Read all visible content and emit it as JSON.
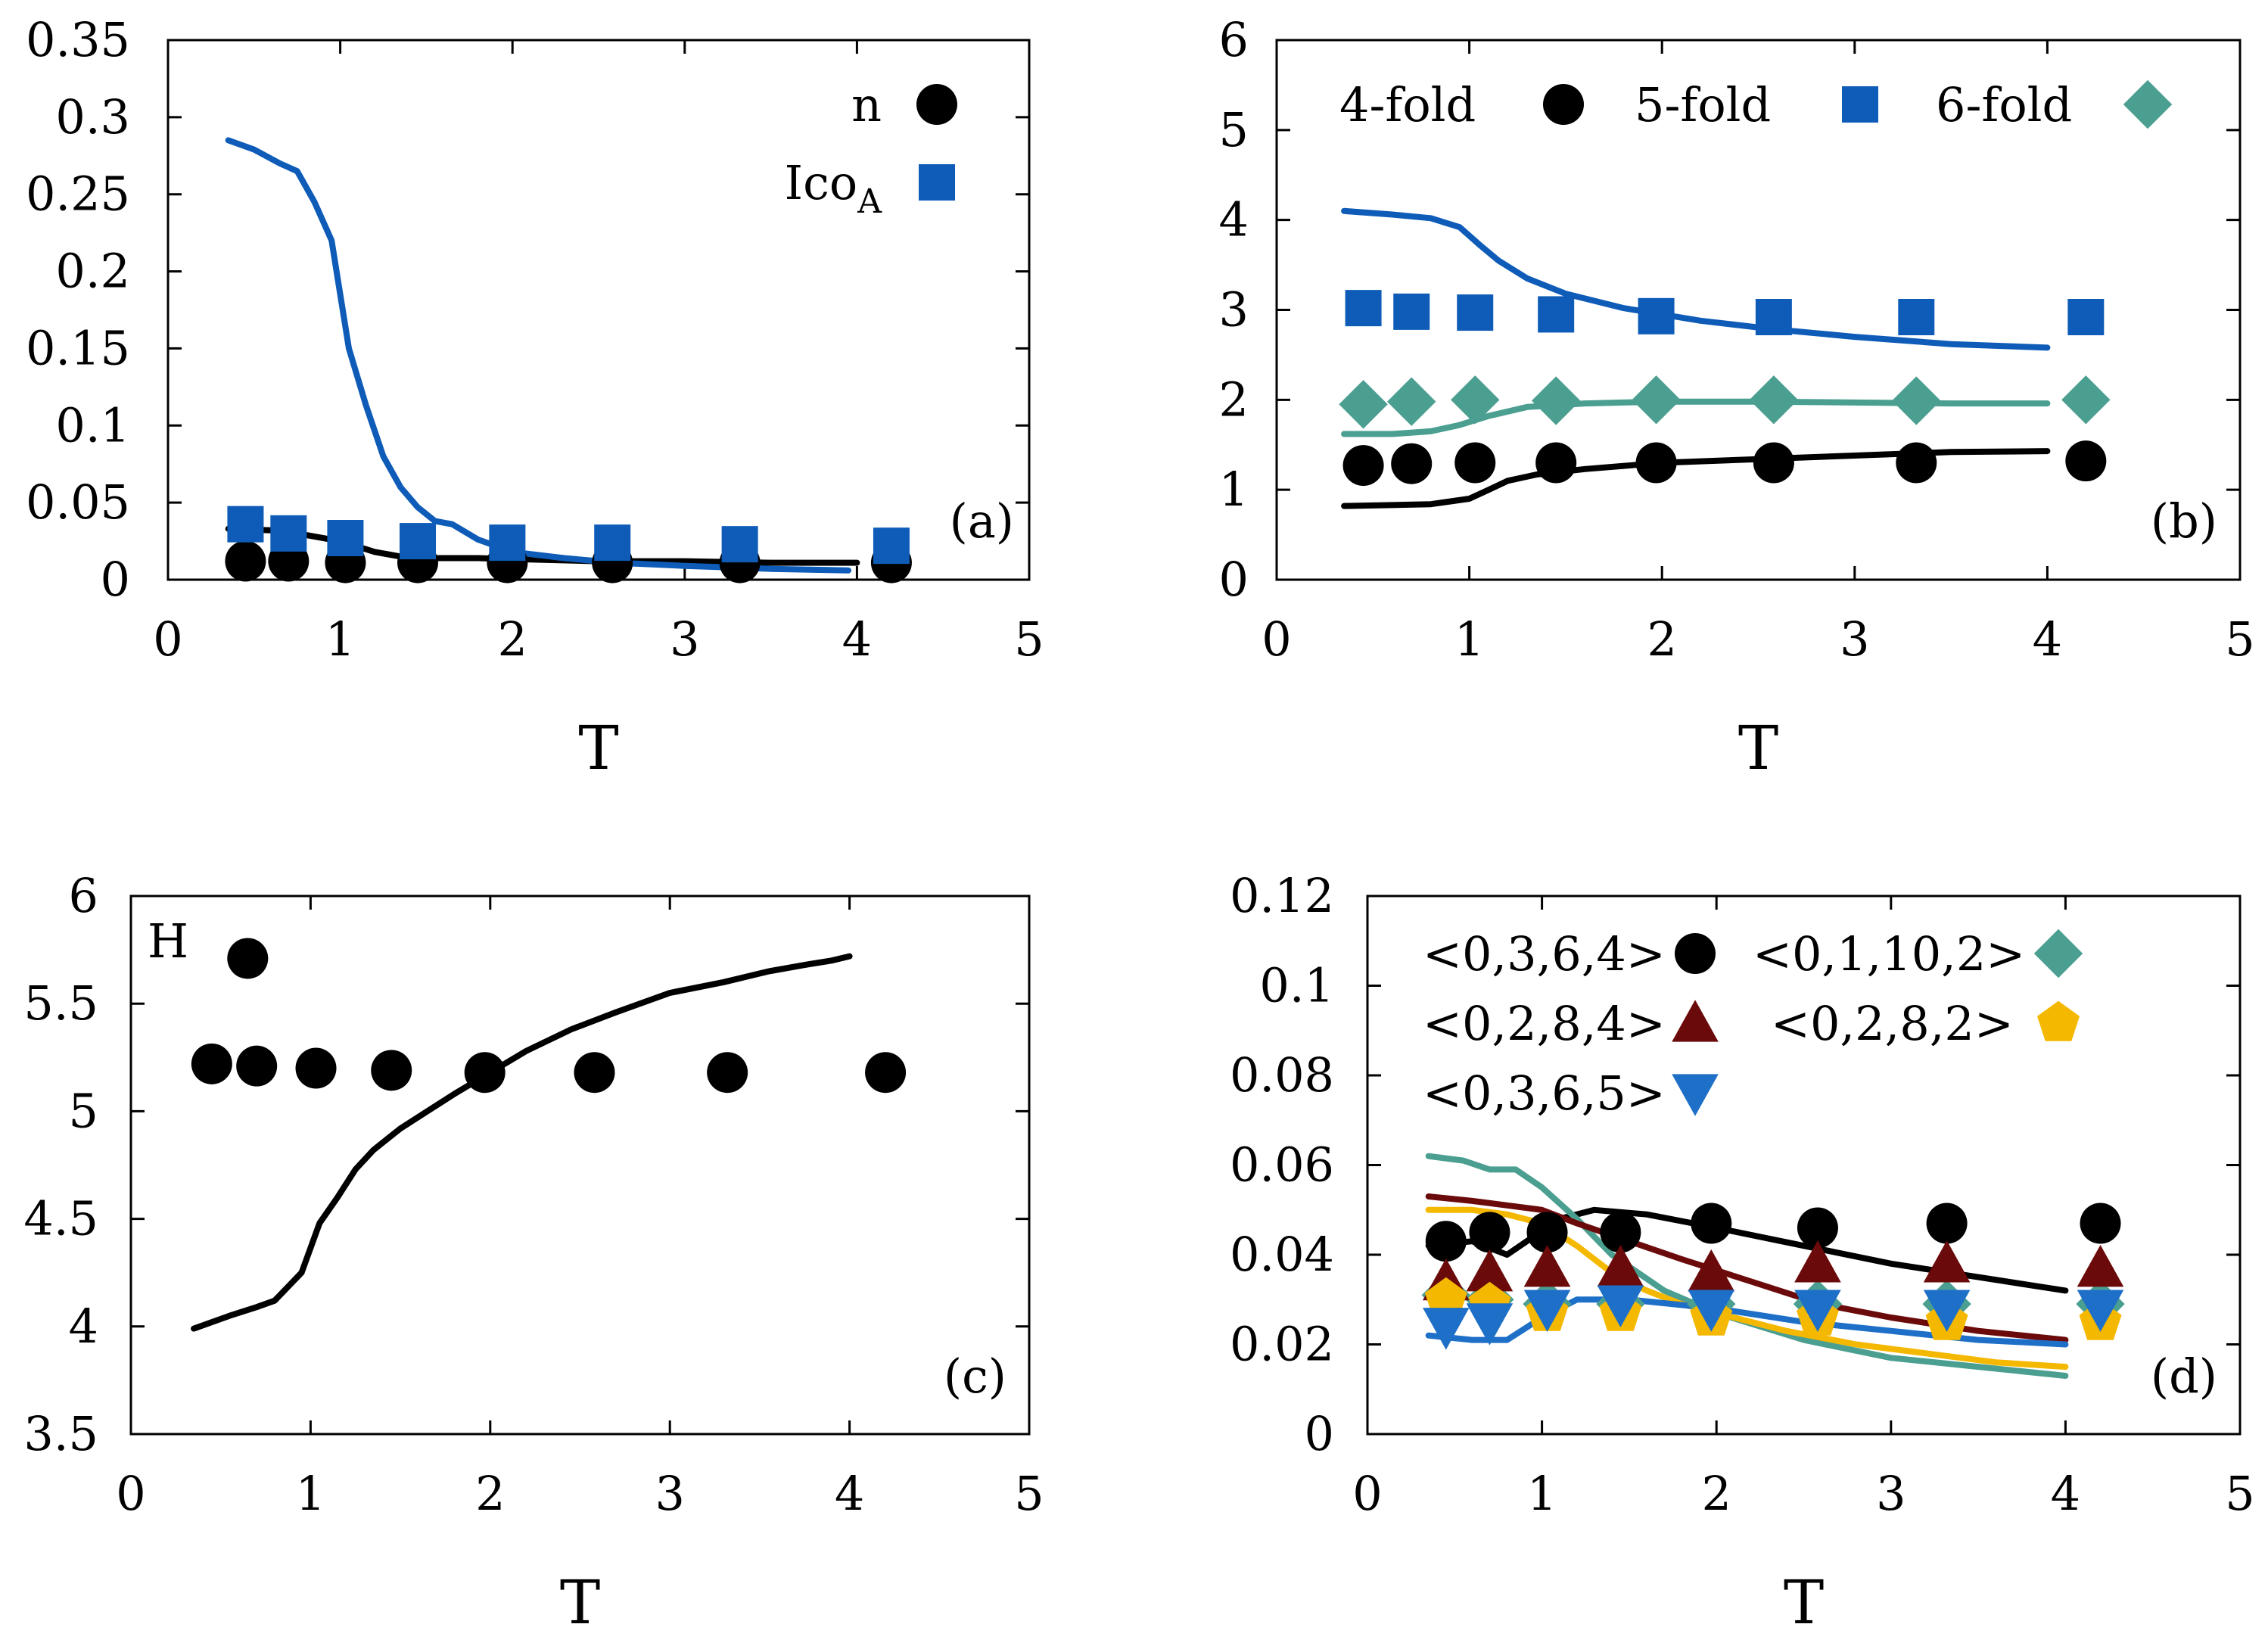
{
  "chart_data": [
    {
      "type": "line",
      "panel": "a",
      "label": "(a)",
      "xlabel": "T",
      "ylabel": "",
      "xlim": [
        0,
        5
      ],
      "ylim": [
        0,
        0.35
      ],
      "xticks": [
        "0",
        "1",
        "2",
        "3",
        "4",
        "5"
      ],
      "yticks": [
        "0",
        "0.05",
        "0.1",
        "0.15",
        "0.2",
        "0.25",
        "0.3",
        "0.35"
      ],
      "legend_position": "top-right",
      "series": [
        {
          "name": "n",
          "color": "#000000",
          "marker": "circle",
          "points": {
            "x": [
              0.45,
              0.7,
              1.03,
              1.45,
              1.97,
              2.58,
              3.32,
              4.2
            ],
            "y": [
              0.012,
              0.012,
              0.011,
              0.011,
              0.011,
              0.011,
              0.011,
              0.011
            ]
          },
          "line": {
            "x": [
              0.35,
              0.6,
              0.8,
              1.0,
              1.2,
              1.4,
              1.8,
              2.5,
              3.0,
              3.5,
              4.0
            ],
            "y": [
              0.033,
              0.032,
              0.029,
              0.025,
              0.018,
              0.014,
              0.014,
              0.012,
              0.012,
              0.011,
              0.011
            ]
          }
        },
        {
          "name": "Ico",
          "subscript": "A",
          "color": "#0e5cb8",
          "marker": "square",
          "points": {
            "x": [
              0.45,
              0.7,
              1.03,
              1.45,
              1.97,
              2.58,
              3.32,
              4.2
            ],
            "y": [
              0.036,
              0.03,
              0.027,
              0.025,
              0.024,
              0.024,
              0.023,
              0.022
            ]
          },
          "line": {
            "x": [
              0.35,
              0.5,
              0.65,
              0.75,
              0.85,
              0.95,
              1.05,
              1.15,
              1.25,
              1.35,
              1.45,
              1.55,
              1.65,
              1.8,
              2.0,
              2.3,
              2.6,
              3.0,
              3.5,
              3.95
            ],
            "y": [
              0.285,
              0.279,
              0.27,
              0.265,
              0.245,
              0.22,
              0.15,
              0.113,
              0.08,
              0.06,
              0.047,
              0.038,
              0.036,
              0.026,
              0.018,
              0.014,
              0.011,
              0.009,
              0.007,
              0.006
            ]
          }
        }
      ]
    },
    {
      "type": "line",
      "panel": "b",
      "label": "(b)",
      "xlabel": "T",
      "ylabel": "",
      "xlim": [
        0,
        5
      ],
      "ylim": [
        0,
        6
      ],
      "xticks": [
        "0",
        "1",
        "2",
        "3",
        "4",
        "5"
      ],
      "yticks": [
        "0",
        "1",
        "2",
        "3",
        "4",
        "5",
        "6"
      ],
      "legend_position": "top",
      "series": [
        {
          "name": "4-fold",
          "color": "#000000",
          "marker": "circle",
          "points": {
            "x": [
              0.45,
              0.7,
              1.03,
              1.45,
              1.97,
              2.58,
              3.32,
              4.2
            ],
            "y": [
              1.27,
              1.29,
              1.3,
              1.3,
              1.3,
              1.3,
              1.3,
              1.32
            ]
          },
          "line": {
            "x": [
              0.35,
              0.6,
              0.8,
              1.0,
              1.1,
              1.2,
              1.35,
              1.6,
              2.0,
              2.5,
              3.0,
              3.5,
              4.0
            ],
            "y": [
              0.82,
              0.83,
              0.84,
              0.9,
              1.0,
              1.1,
              1.17,
              1.23,
              1.3,
              1.34,
              1.38,
              1.42,
              1.43
            ]
          }
        },
        {
          "name": "5-fold",
          "color": "#0e5cb8",
          "marker": "square",
          "points": {
            "x": [
              0.45,
              0.7,
              1.03,
              1.45,
              1.97,
              2.58,
              3.32,
              4.2
            ],
            "y": [
              3.02,
              2.98,
              2.97,
              2.95,
              2.93,
              2.92,
              2.92,
              2.92
            ]
          },
          "line": {
            "x": [
              0.35,
              0.6,
              0.8,
              0.95,
              1.05,
              1.15,
              1.3,
              1.5,
              1.8,
              2.2,
              2.6,
              3.0,
              3.5,
              4.0
            ],
            "y": [
              4.1,
              4.06,
              4.02,
              3.92,
              3.73,
              3.55,
              3.35,
              3.18,
              3.02,
              2.88,
              2.78,
              2.7,
              2.62,
              2.58
            ]
          }
        },
        {
          "name": "6-fold",
          "color": "#4b9f90",
          "marker": "diamond",
          "points": {
            "x": [
              0.45,
              0.7,
              1.03,
              1.45,
              1.97,
              2.58,
              3.32,
              4.2
            ],
            "y": [
              1.95,
              1.98,
              2.0,
              1.99,
              2.0,
              2.0,
              1.99,
              2.0
            ]
          },
          "line": {
            "x": [
              0.35,
              0.6,
              0.8,
              0.95,
              1.1,
              1.3,
              1.6,
              2.0,
              2.5,
              3.0,
              3.5,
              4.0
            ],
            "y": [
              1.62,
              1.62,
              1.65,
              1.72,
              1.82,
              1.92,
              1.96,
              1.98,
              1.98,
              1.97,
              1.96,
              1.96
            ]
          }
        }
      ]
    },
    {
      "type": "line",
      "panel": "c",
      "label": "(c)",
      "xlabel": "T",
      "ylabel": "",
      "xlim": [
        0,
        5
      ],
      "ylim": [
        3.5,
        6
      ],
      "xticks": [
        "0",
        "1",
        "2",
        "3",
        "4",
        "5"
      ],
      "yticks": [
        "3.5",
        "4",
        "4.5",
        "5",
        "5.5",
        "6"
      ],
      "legend_position": "top-left",
      "series": [
        {
          "name": "H",
          "color": "#000000",
          "marker": "circle",
          "points": {
            "x": [
              0.45,
              0.65,
              0.7,
              1.03,
              1.45,
              1.97,
              2.58,
              3.32,
              4.2
            ],
            "y": [
              5.22,
              5.71,
              5.21,
              5.2,
              5.19,
              5.18,
              5.18,
              5.18,
              5.18
            ]
          },
          "line": {
            "x": [
              0.35,
              0.55,
              0.7,
              0.8,
              0.95,
              1.05,
              1.15,
              1.25,
              1.35,
              1.5,
              1.65,
              1.8,
              2.0,
              2.2,
              2.45,
              2.7,
              3.0,
              3.3,
              3.55,
              3.75,
              3.9,
              4.0
            ],
            "y": [
              3.99,
              4.05,
              4.09,
              4.12,
              4.25,
              4.48,
              4.6,
              4.73,
              4.82,
              4.92,
              5.0,
              5.08,
              5.18,
              5.28,
              5.38,
              5.46,
              5.55,
              5.6,
              5.65,
              5.68,
              5.7,
              5.72
            ]
          }
        }
      ]
    },
    {
      "type": "line",
      "panel": "d",
      "label": "(d)",
      "xlabel": "T",
      "ylabel": "",
      "xlim": [
        0,
        5
      ],
      "ylim": [
        0,
        0.12
      ],
      "xticks": [
        "0",
        "1",
        "2",
        "3",
        "4",
        "5"
      ],
      "yticks": [
        "0",
        "0.02",
        "0.04",
        "0.06",
        "0.08",
        "0.1",
        "0.12"
      ],
      "legend_position": "top",
      "series": [
        {
          "name": "<0,3,6,4>",
          "color": "#000000",
          "marker": "circle",
          "points": {
            "x": [
              0.45,
              0.7,
              1.03,
              1.45,
              1.97,
              2.58,
              3.32,
              4.2
            ],
            "y": [
              0.043,
              0.045,
              0.045,
              0.045,
              0.047,
              0.046,
              0.047,
              0.047
            ]
          },
          "line": {
            "x": [
              0.35,
              0.6,
              0.8,
              0.95,
              1.1,
              1.3,
              1.6,
              2.0,
              2.5,
              3.0,
              3.5,
              4.0
            ],
            "y": [
              0.042,
              0.043,
              0.04,
              0.044,
              0.048,
              0.05,
              0.049,
              0.046,
              0.042,
              0.038,
              0.035,
              0.032
            ]
          }
        },
        {
          "name": "<0,1,10,2>",
          "color": "#4b9f90",
          "marker": "diamond",
          "points": {
            "x": [
              0.45,
              0.7,
              1.03,
              1.45,
              1.97,
              2.58,
              3.32,
              4.2
            ],
            "y": [
              0.031,
              0.03,
              0.029,
              0.029,
              0.029,
              0.029,
              0.029,
              0.029
            ]
          },
          "line": {
            "x": [
              0.35,
              0.55,
              0.7,
              0.85,
              1.0,
              1.2,
              1.4,
              1.7,
              2.0,
              2.5,
              3.0,
              3.5,
              4.0
            ],
            "y": [
              0.062,
              0.061,
              0.059,
              0.059,
              0.055,
              0.048,
              0.04,
              0.032,
              0.027,
              0.021,
              0.017,
              0.015,
              0.013
            ]
          }
        },
        {
          "name": "<0,2,8,4>",
          "color": "#6b0a0a",
          "marker": "triangle-up",
          "points": {
            "x": [
              0.45,
              0.7,
              1.03,
              1.45,
              1.97,
              2.58,
              3.32,
              4.2
            ],
            "y": [
              0.034,
              0.036,
              0.037,
              0.037,
              0.036,
              0.038,
              0.038,
              0.037
            ]
          },
          "line": {
            "x": [
              0.35,
              0.6,
              0.8,
              1.0,
              1.2,
              1.5,
              1.8,
              2.2,
              2.6,
              3.0,
              3.5,
              4.0
            ],
            "y": [
              0.053,
              0.052,
              0.051,
              0.05,
              0.047,
              0.043,
              0.039,
              0.034,
              0.029,
              0.026,
              0.023,
              0.021
            ]
          }
        },
        {
          "name": "<0,2,8,2>",
          "color": "#f5b800",
          "marker": "pentagon",
          "points": {
            "x": [
              0.45,
              0.7,
              1.03,
              1.45,
              1.97,
              2.58,
              3.32,
              4.2
            ],
            "y": [
              0.03,
              0.029,
              0.027,
              0.027,
              0.026,
              0.026,
              0.025,
              0.025
            ]
          },
          "line": {
            "x": [
              0.35,
              0.6,
              0.8,
              1.0,
              1.2,
              1.4,
              1.6,
              1.8,
              2.0,
              2.4,
              2.8,
              3.2,
              3.6,
              4.0
            ],
            "y": [
              0.05,
              0.05,
              0.049,
              0.047,
              0.042,
              0.036,
              0.032,
              0.029,
              0.027,
              0.023,
              0.02,
              0.018,
              0.016,
              0.015
            ]
          }
        },
        {
          "name": "<0,3,6,5>",
          "color": "#1e6fc8",
          "marker": "triangle-down",
          "points": {
            "x": [
              0.45,
              0.7,
              1.03,
              1.45,
              1.97,
              2.58,
              3.32,
              4.2
            ],
            "y": [
              0.024,
              0.025,
              0.028,
              0.029,
              0.028,
              0.028,
              0.028,
              0.028
            ]
          },
          "line": {
            "x": [
              0.35,
              0.6,
              0.8,
              1.0,
              1.2,
              1.5,
              2.0,
              2.5,
              3.0,
              3.5,
              4.0
            ],
            "y": [
              0.022,
              0.021,
              0.021,
              0.026,
              0.03,
              0.03,
              0.028,
              0.025,
              0.023,
              0.021,
              0.02
            ]
          }
        }
      ]
    }
  ]
}
